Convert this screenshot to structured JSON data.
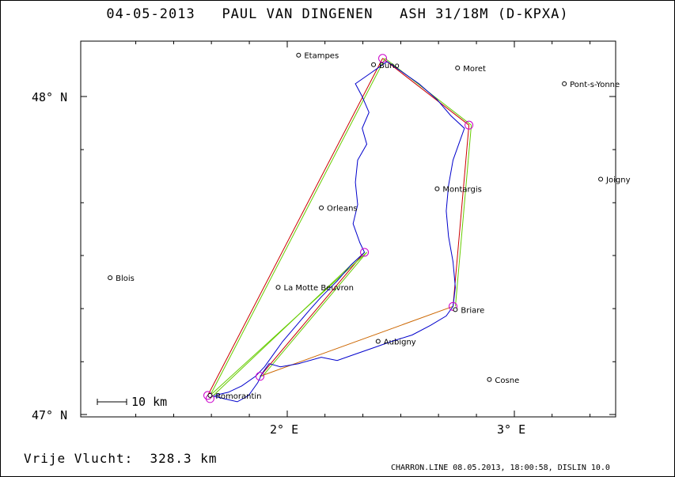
{
  "header": {
    "date": "04-05-2013",
    "pilot": "PAUL VAN DINGENEN",
    "glider": "ASH 31/18M (D-KPXA)"
  },
  "axes": {
    "lat_ticks": [
      {
        "value": 48,
        "label": "48° N"
      },
      {
        "value": 47,
        "label": "47° N"
      }
    ],
    "lon_ticks": [
      {
        "value": 2,
        "label": "2° E"
      },
      {
        "value": 3,
        "label": "3° E"
      }
    ]
  },
  "scale_bar": {
    "label": "10 km"
  },
  "towns": [
    {
      "name": "Etampes",
      "lon": 2.05,
      "lat": 48.13
    },
    {
      "name": "Buno",
      "lon": 2.38,
      "lat": 48.1
    },
    {
      "name": "Moret",
      "lon": 2.75,
      "lat": 48.09
    },
    {
      "name": "Pont-s-Yonne",
      "lon": 3.22,
      "lat": 48.04
    },
    {
      "name": "Joigny",
      "lon": 3.38,
      "lat": 47.74
    },
    {
      "name": "Montargis",
      "lon": 2.66,
      "lat": 47.71
    },
    {
      "name": "Orleans",
      "lon": 2.15,
      "lat": 47.65
    },
    {
      "name": "Blois",
      "lon": 1.22,
      "lat": 47.43
    },
    {
      "name": "La Motte Beuvron",
      "lon": 1.96,
      "lat": 47.4
    },
    {
      "name": "Briare",
      "lon": 2.74,
      "lat": 47.33
    },
    {
      "name": "Aubigny",
      "lon": 2.4,
      "lat": 47.23
    },
    {
      "name": "Cosne",
      "lon": 2.89,
      "lat": 47.11
    },
    {
      "name": "Romorantin",
      "lon": 1.66,
      "lat": 47.06
    }
  ],
  "task_points": [
    {
      "lon": 1.65,
      "lat": 47.06
    },
    {
      "lon": 2.42,
      "lat": 48.12
    },
    {
      "lon": 2.8,
      "lat": 47.91
    },
    {
      "lon": 2.73,
      "lat": 47.34
    },
    {
      "lon": 1.88,
      "lat": 47.12
    },
    {
      "lon": 2.34,
      "lat": 47.51
    },
    {
      "lon": 1.66,
      "lat": 47.05
    }
  ],
  "track": [
    [
      1.66,
      47.06
    ],
    [
      1.72,
      47.05
    ],
    [
      1.78,
      47.04
    ],
    [
      1.83,
      47.06
    ],
    [
      1.87,
      47.1
    ],
    [
      1.89,
      47.13
    ],
    [
      1.92,
      47.16
    ],
    [
      1.97,
      47.15
    ],
    [
      2.05,
      47.16
    ],
    [
      2.15,
      47.18
    ],
    [
      2.22,
      47.17
    ],
    [
      2.3,
      47.19
    ],
    [
      2.38,
      47.21
    ],
    [
      2.46,
      47.23
    ],
    [
      2.55,
      47.25
    ],
    [
      2.63,
      47.28
    ],
    [
      2.7,
      47.31
    ],
    [
      2.73,
      47.34
    ],
    [
      2.74,
      47.4
    ],
    [
      2.73,
      47.48
    ],
    [
      2.71,
      47.56
    ],
    [
      2.7,
      47.64
    ],
    [
      2.71,
      47.72
    ],
    [
      2.73,
      47.8
    ],
    [
      2.76,
      47.86
    ],
    [
      2.78,
      47.9
    ],
    [
      2.72,
      47.94
    ],
    [
      2.66,
      47.99
    ],
    [
      2.58,
      48.04
    ],
    [
      2.5,
      48.08
    ],
    [
      2.44,
      48.11
    ],
    [
      2.4,
      48.09
    ],
    [
      2.36,
      48.07
    ],
    [
      2.3,
      48.04
    ],
    [
      2.33,
      48.0
    ],
    [
      2.36,
      47.95
    ],
    [
      2.33,
      47.9
    ],
    [
      2.35,
      47.85
    ],
    [
      2.31,
      47.8
    ],
    [
      2.3,
      47.73
    ],
    [
      2.31,
      47.66
    ],
    [
      2.29,
      47.6
    ],
    [
      2.32,
      47.54
    ],
    [
      2.34,
      47.51
    ],
    [
      2.28,
      47.47
    ],
    [
      2.22,
      47.42
    ],
    [
      2.15,
      47.37
    ],
    [
      2.1,
      47.33
    ],
    [
      2.04,
      47.28
    ],
    [
      1.98,
      47.23
    ],
    [
      1.94,
      47.19
    ],
    [
      1.9,
      47.15
    ],
    [
      1.86,
      47.12
    ],
    [
      1.8,
      47.09
    ],
    [
      1.74,
      47.07
    ],
    [
      1.68,
      47.06
    ]
  ],
  "footer": {
    "distance": "Vrije Vlucht:  328.3 km",
    "credits": "CHARRON.LINE 08.05.2013, 18:00:58, DISLIN 10.0"
  },
  "colors": {
    "frame": "#000000",
    "track": "#0000cc",
    "task_leg": "#cc0000",
    "optimized_leg": "#66cc00",
    "final_leg": "#cc6600",
    "turnpoint": "#cc00cc",
    "town_marker": "#000000"
  }
}
